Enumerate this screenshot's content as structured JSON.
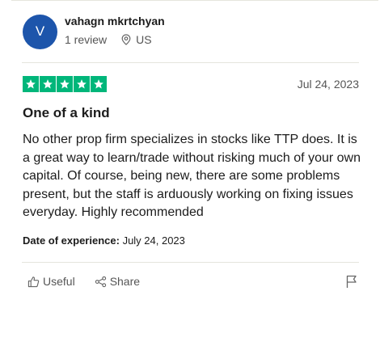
{
  "reviewer": {
    "initial": "V",
    "name": "vahagn mkrtchyan",
    "review_count": "1 review",
    "country": "US"
  },
  "review": {
    "rating": 5,
    "rating_max": 5,
    "date": "Jul 24, 2023",
    "title": "One of a kind",
    "body": "No other prop firm specializes in stocks like TTP does. It is a great way to learn/trade without risking much of your own capital. Of course, being new, there are some problems present, but the staff is arduously working on fixing issues everyday. Highly recommended",
    "experience_label": "Date of experience:",
    "experience_date": "July 24, 2023"
  },
  "actions": {
    "useful_label": "Useful",
    "share_label": "Share"
  },
  "colors": {
    "avatar": "#1d55ab",
    "star": "#00b67a"
  }
}
